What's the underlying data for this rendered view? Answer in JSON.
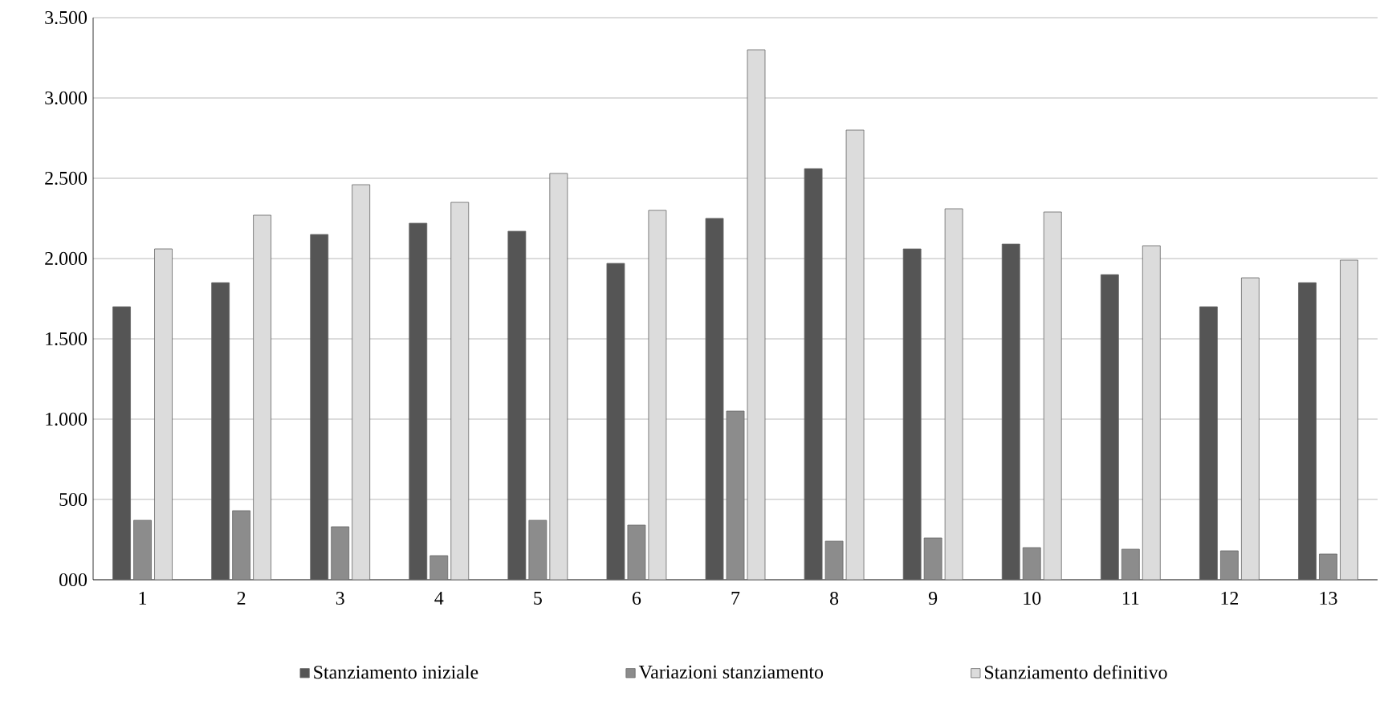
{
  "chart_data": {
    "type": "bar",
    "categories": [
      "1",
      "2",
      "3",
      "4",
      "5",
      "6",
      "7",
      "8",
      "9",
      "10",
      "11",
      "12",
      "13"
    ],
    "series": [
      {
        "name": "Stanziamento iniziale",
        "color": "#555555",
        "values": [
          1700,
          1850,
          2150,
          2220,
          2170,
          1970,
          2250,
          2560,
          2060,
          2090,
          1900,
          1700,
          1850
        ]
      },
      {
        "name": "Variazioni stanziamento",
        "color": "#8c8c8c",
        "values": [
          370,
          430,
          330,
          150,
          370,
          340,
          1050,
          240,
          260,
          200,
          190,
          180,
          160
        ]
      },
      {
        "name": "Stanziamento definitivo",
        "color": "#dcdcdc",
        "values": [
          2060,
          2270,
          2460,
          2350,
          2530,
          2300,
          3300,
          2800,
          2310,
          2290,
          2080,
          1880,
          1990
        ]
      }
    ],
    "ylim": [
      0,
      3500
    ],
    "yticks": [
      {
        "value": 0,
        "label": "000"
      },
      500,
      {
        "value": 1000,
        "label": "1.000"
      },
      {
        "value": 1500,
        "label": "1.500"
      },
      {
        "value": 2000,
        "label": "2.000"
      },
      {
        "value": 2500,
        "label": "2.500"
      },
      {
        "value": 3000,
        "label": "3.000"
      },
      {
        "value": 3500,
        "label": "3.500"
      }
    ],
    "grid": "y",
    "legend": "bottom"
  }
}
